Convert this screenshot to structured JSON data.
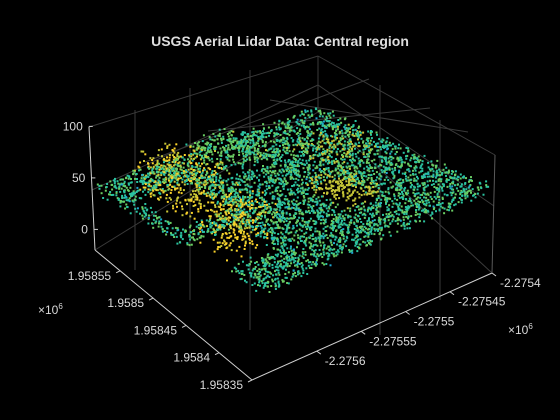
{
  "chart_data": {
    "type": "scatter",
    "title": "USGS Aerial Lidar Data: Central region",
    "xlabel": "",
    "ylabel": "",
    "zlabel": "",
    "grid": true,
    "colormap": [
      "#2a5ad9",
      "#20a6d0",
      "#2ac2a0",
      "#6acd63",
      "#c7c637",
      "#fbd22a"
    ],
    "x_axis": {
      "ticks": [
        -2.2756,
        -2.27555,
        -2.2755,
        -2.27545,
        -2.2754
      ],
      "tick_labels": [
        "-2.2756",
        "-2.27555",
        "-2.2755",
        "-2.27545",
        "-2.2754"
      ],
      "exponent_label": "×10",
      "exponent_value": "6"
    },
    "y_axis": {
      "ticks": [
        1.95835,
        1.9584,
        1.95845,
        1.9585,
        1.95855
      ],
      "tick_labels": [
        "1.95835",
        "1.9584",
        "1.95845",
        "1.9585",
        "1.95855"
      ],
      "exponent_label": "×10",
      "exponent_value": "6"
    },
    "z_axis": {
      "ticks": [
        0,
        50,
        100
      ],
      "tick_labels": [
        "0",
        "50",
        "100"
      ],
      "zlim": [
        -20,
        100
      ]
    }
  }
}
